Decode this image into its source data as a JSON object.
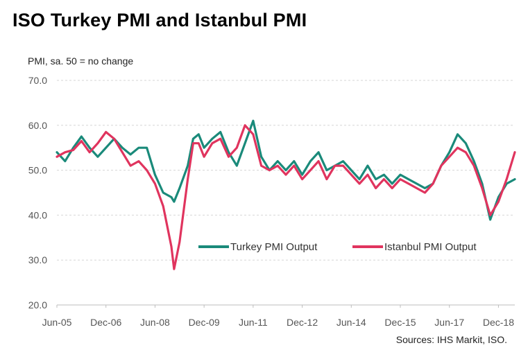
{
  "title": "ISO Turkey PMI and Istanbul PMI",
  "chart_data": {
    "type": "line",
    "title": "ISO Turkey PMI and Istanbul PMI",
    "ylabel": "PMI, sa. 50 = no change",
    "source": "Sources: IHS Markit, ISO.",
    "ylim": [
      20,
      70
    ],
    "yticks": [
      "20.0",
      "30.0",
      "40.0",
      "50.0",
      "60.0",
      "70.0"
    ],
    "xticks": [
      "Jun-05",
      "Dec-06",
      "Jun-08",
      "Dec-09",
      "Jun-11",
      "Dec-12",
      "Jun-14",
      "Dec-15",
      "Jun-17",
      "Dec-18"
    ],
    "x_start": "2005-06",
    "x_end": "2019-06",
    "legend": "center-right",
    "grid": "horizontal-dashed",
    "series": [
      {
        "name": "Turkey PMI Output",
        "color": "#1a8a7a",
        "points": [
          [
            "2005-06",
            54
          ],
          [
            "2005-09",
            52
          ],
          [
            "2005-12",
            55
          ],
          [
            "2006-03",
            57.5
          ],
          [
            "2006-06",
            55
          ],
          [
            "2006-09",
            53
          ],
          [
            "2006-12",
            55
          ],
          [
            "2007-03",
            57
          ],
          [
            "2007-06",
            55
          ],
          [
            "2007-09",
            53.5
          ],
          [
            "2007-12",
            55
          ],
          [
            "2008-03",
            55
          ],
          [
            "2008-06",
            49
          ],
          [
            "2008-09",
            45
          ],
          [
            "2008-12",
            44
          ],
          [
            "2009-01",
            43
          ],
          [
            "2009-03",
            46
          ],
          [
            "2009-06",
            51
          ],
          [
            "2009-08",
            57
          ],
          [
            "2009-10",
            58
          ],
          [
            "2009-12",
            55
          ],
          [
            "2010-03",
            57
          ],
          [
            "2010-06",
            58.5
          ],
          [
            "2010-09",
            54
          ],
          [
            "2010-12",
            51
          ],
          [
            "2011-03",
            56
          ],
          [
            "2011-06",
            61
          ],
          [
            "2011-09",
            53
          ],
          [
            "2011-12",
            50
          ],
          [
            "2012-03",
            52
          ],
          [
            "2012-06",
            50
          ],
          [
            "2012-09",
            52
          ],
          [
            "2012-12",
            49
          ],
          [
            "2013-03",
            52
          ],
          [
            "2013-06",
            54
          ],
          [
            "2013-09",
            50
          ],
          [
            "2013-12",
            51
          ],
          [
            "2014-03",
            52
          ],
          [
            "2014-06",
            50
          ],
          [
            "2014-09",
            48
          ],
          [
            "2014-12",
            51
          ],
          [
            "2015-03",
            48
          ],
          [
            "2015-06",
            49
          ],
          [
            "2015-09",
            47
          ],
          [
            "2015-12",
            49
          ],
          [
            "2016-03",
            48
          ],
          [
            "2016-06",
            47
          ],
          [
            "2016-09",
            46
          ],
          [
            "2016-12",
            47
          ],
          [
            "2017-03",
            51
          ],
          [
            "2017-06",
            54
          ],
          [
            "2017-09",
            58
          ],
          [
            "2017-12",
            56
          ],
          [
            "2018-03",
            52
          ],
          [
            "2018-06",
            47
          ],
          [
            "2018-09",
            39
          ],
          [
            "2018-12",
            44
          ],
          [
            "2019-03",
            47
          ],
          [
            "2019-06",
            48
          ]
        ]
      },
      {
        "name": "Istanbul PMI Output",
        "color": "#e0345e",
        "points": [
          [
            "2005-06",
            53
          ],
          [
            "2005-09",
            54
          ],
          [
            "2005-12",
            54.5
          ],
          [
            "2006-03",
            56.5
          ],
          [
            "2006-06",
            54
          ],
          [
            "2006-09",
            56
          ],
          [
            "2006-12",
            58.5
          ],
          [
            "2007-03",
            57
          ],
          [
            "2007-06",
            54
          ],
          [
            "2007-09",
            51
          ],
          [
            "2007-12",
            52
          ],
          [
            "2008-03",
            50
          ],
          [
            "2008-06",
            47
          ],
          [
            "2008-09",
            42
          ],
          [
            "2008-12",
            33
          ],
          [
            "2009-01",
            28
          ],
          [
            "2009-03",
            34
          ],
          [
            "2009-06",
            48
          ],
          [
            "2009-08",
            56
          ],
          [
            "2009-10",
            56
          ],
          [
            "2009-12",
            53
          ],
          [
            "2010-03",
            56
          ],
          [
            "2010-06",
            57
          ],
          [
            "2010-09",
            53
          ],
          [
            "2010-12",
            55
          ],
          [
            "2011-03",
            60
          ],
          [
            "2011-06",
            58
          ],
          [
            "2011-09",
            51
          ],
          [
            "2011-12",
            50
          ],
          [
            "2012-03",
            51
          ],
          [
            "2012-06",
            49
          ],
          [
            "2012-09",
            51
          ],
          [
            "2012-12",
            48
          ],
          [
            "2013-03",
            50
          ],
          [
            "2013-06",
            52
          ],
          [
            "2013-09",
            48
          ],
          [
            "2013-12",
            51
          ],
          [
            "2014-03",
            51
          ],
          [
            "2014-06",
            49
          ],
          [
            "2014-09",
            47
          ],
          [
            "2014-12",
            49
          ],
          [
            "2015-03",
            46
          ],
          [
            "2015-06",
            48
          ],
          [
            "2015-09",
            46
          ],
          [
            "2015-12",
            48
          ],
          [
            "2016-03",
            47
          ],
          [
            "2016-06",
            46
          ],
          [
            "2016-09",
            45
          ],
          [
            "2016-12",
            47
          ],
          [
            "2017-03",
            51
          ],
          [
            "2017-06",
            53
          ],
          [
            "2017-09",
            55
          ],
          [
            "2017-12",
            54
          ],
          [
            "2018-03",
            51
          ],
          [
            "2018-06",
            46
          ],
          [
            "2018-09",
            40
          ],
          [
            "2018-12",
            43
          ],
          [
            "2019-03",
            48
          ],
          [
            "2019-06",
            54
          ]
        ]
      }
    ]
  }
}
